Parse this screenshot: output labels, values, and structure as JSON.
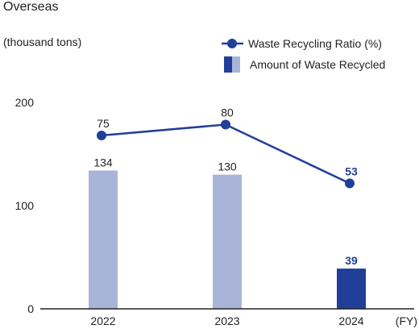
{
  "title": "Overseas",
  "unit_label": "(thousand tons)",
  "chart_data": {
    "type": "bar",
    "categories": [
      "2022",
      "2023",
      "2024"
    ],
    "x_unit": "(FY)",
    "y_ticks": [
      "0",
      "100",
      "200"
    ],
    "ylim": [
      0,
      200
    ],
    "series": [
      {
        "name": "Amount of Waste Recycled",
        "kind": "bar",
        "values": [
          134,
          130,
          39
        ],
        "labels": [
          "134",
          "130",
          "39"
        ]
      },
      {
        "name": "Waste Recycling Ratio (%)",
        "kind": "line",
        "values": [
          75,
          80,
          53
        ],
        "labels": [
          "75",
          "80",
          "53"
        ]
      }
    ],
    "legend_position": "top-right",
    "colors": {
      "bar_past": "#a8b5d9",
      "bar_latest": "#1f3f99",
      "line": "#1f3f99"
    }
  }
}
